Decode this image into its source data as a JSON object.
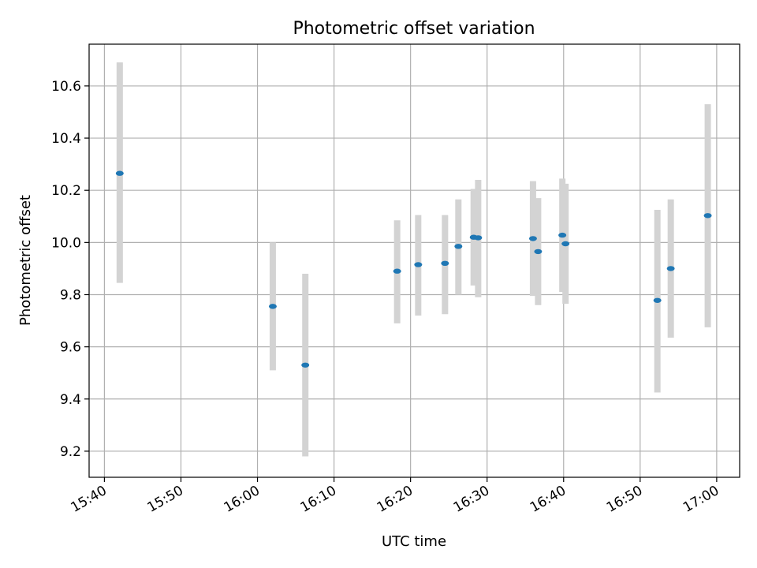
{
  "chart_data": {
    "type": "scatter",
    "title": "Photometric offset variation",
    "xlabel": "UTC time",
    "ylabel": "Photometric offset",
    "x_ticks": [
      "15:40",
      "15:50",
      "16:00",
      "16:10",
      "16:20",
      "16:30",
      "16:40",
      "16:50",
      "17:00"
    ],
    "xlim": [
      "15:38:00",
      "17:03:00"
    ],
    "y_ticks": [
      "9.2",
      "9.4",
      "9.6",
      "9.8",
      "10.0",
      "10.2",
      "10.4",
      "10.6"
    ],
    "ylim": [
      9.1,
      10.76
    ],
    "grid": true,
    "errorbar_color": "#d3d3d3",
    "marker_color": "#1f77b4",
    "points": [
      {
        "t": "15:42:00",
        "y": 10.265,
        "ymin": 9.845,
        "ymax": 10.69
      },
      {
        "t": "16:02:00",
        "y": 9.755,
        "ymin": 9.51,
        "ymax": 10.0
      },
      {
        "t": "16:06:15",
        "y": 9.53,
        "ymin": 9.18,
        "ymax": 9.88
      },
      {
        "t": "16:18:15",
        "y": 9.89,
        "ymin": 9.69,
        "ymax": 10.085
      },
      {
        "t": "16:21:00",
        "y": 9.915,
        "ymin": 9.72,
        "ymax": 10.105
      },
      {
        "t": "16:24:30",
        "y": 9.92,
        "ymin": 9.725,
        "ymax": 10.105
      },
      {
        "t": "16:26:15",
        "y": 9.985,
        "ymin": 9.8,
        "ymax": 10.165
      },
      {
        "t": "16:28:15",
        "y": 10.02,
        "ymin": 9.835,
        "ymax": 10.205
      },
      {
        "t": "16:28:50",
        "y": 10.018,
        "ymin": 9.79,
        "ymax": 10.24
      },
      {
        "t": "16:36:00",
        "y": 10.015,
        "ymin": 9.795,
        "ymax": 10.235
      },
      {
        "t": "16:36:40",
        "y": 9.965,
        "ymin": 9.76,
        "ymax": 10.17
      },
      {
        "t": "16:39:50",
        "y": 10.028,
        "ymin": 9.81,
        "ymax": 10.245
      },
      {
        "t": "16:40:15",
        "y": 9.995,
        "ymin": 9.765,
        "ymax": 10.225
      },
      {
        "t": "16:52:15",
        "y": 9.778,
        "ymin": 9.425,
        "ymax": 10.125
      },
      {
        "t": "16:54:00",
        "y": 9.9,
        "ymin": 9.635,
        "ymax": 10.165
      },
      {
        "t": "16:58:50",
        "y": 10.103,
        "ymin": 9.675,
        "ymax": 10.53
      }
    ]
  }
}
